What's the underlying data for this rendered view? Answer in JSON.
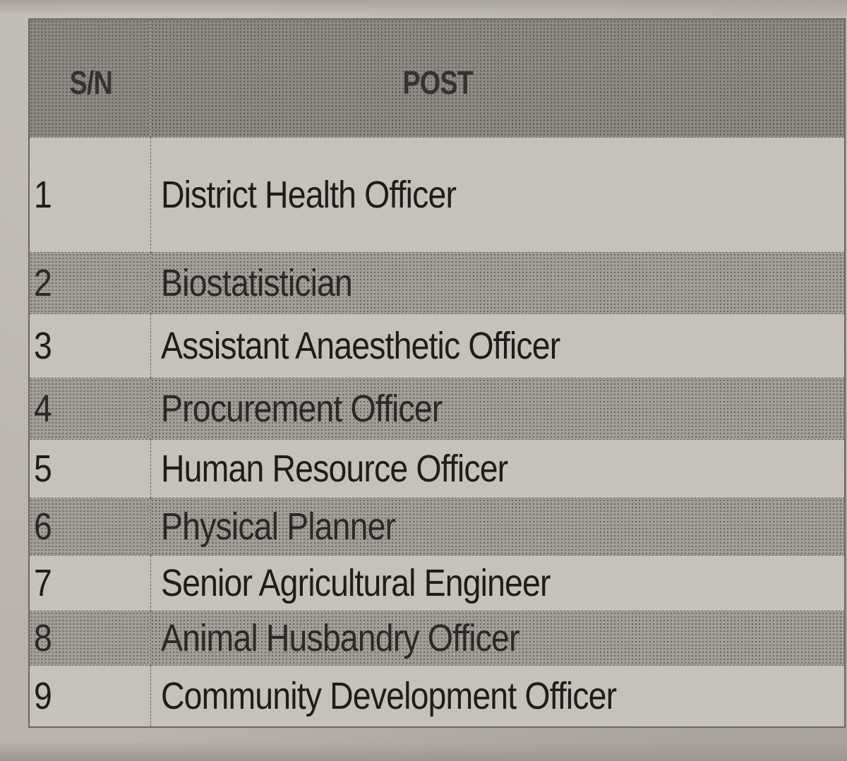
{
  "table": {
    "headers": {
      "sn": "S/N",
      "post": "POST"
    },
    "rows": [
      {
        "sn": "1",
        "post": "District Health Officer",
        "shaded": false
      },
      {
        "sn": "2",
        "post": "Biostatistician",
        "shaded": true
      },
      {
        "sn": "3",
        "post": "Assistant Anaesthetic  Officer",
        "shaded": false
      },
      {
        "sn": "4",
        "post": "Procurement Officer",
        "shaded": true
      },
      {
        "sn": "5",
        "post": "Human Resource Officer",
        "shaded": false
      },
      {
        "sn": "6",
        "post": "Physical Planner",
        "shaded": true
      },
      {
        "sn": "7",
        "post": "Senior Agricultural Engineer",
        "shaded": false
      },
      {
        "sn": "8",
        "post": "Animal Husbandry Officer",
        "shaded": true
      },
      {
        "sn": "9",
        "post": "Community Development Officer",
        "shaded": false
      }
    ]
  }
}
